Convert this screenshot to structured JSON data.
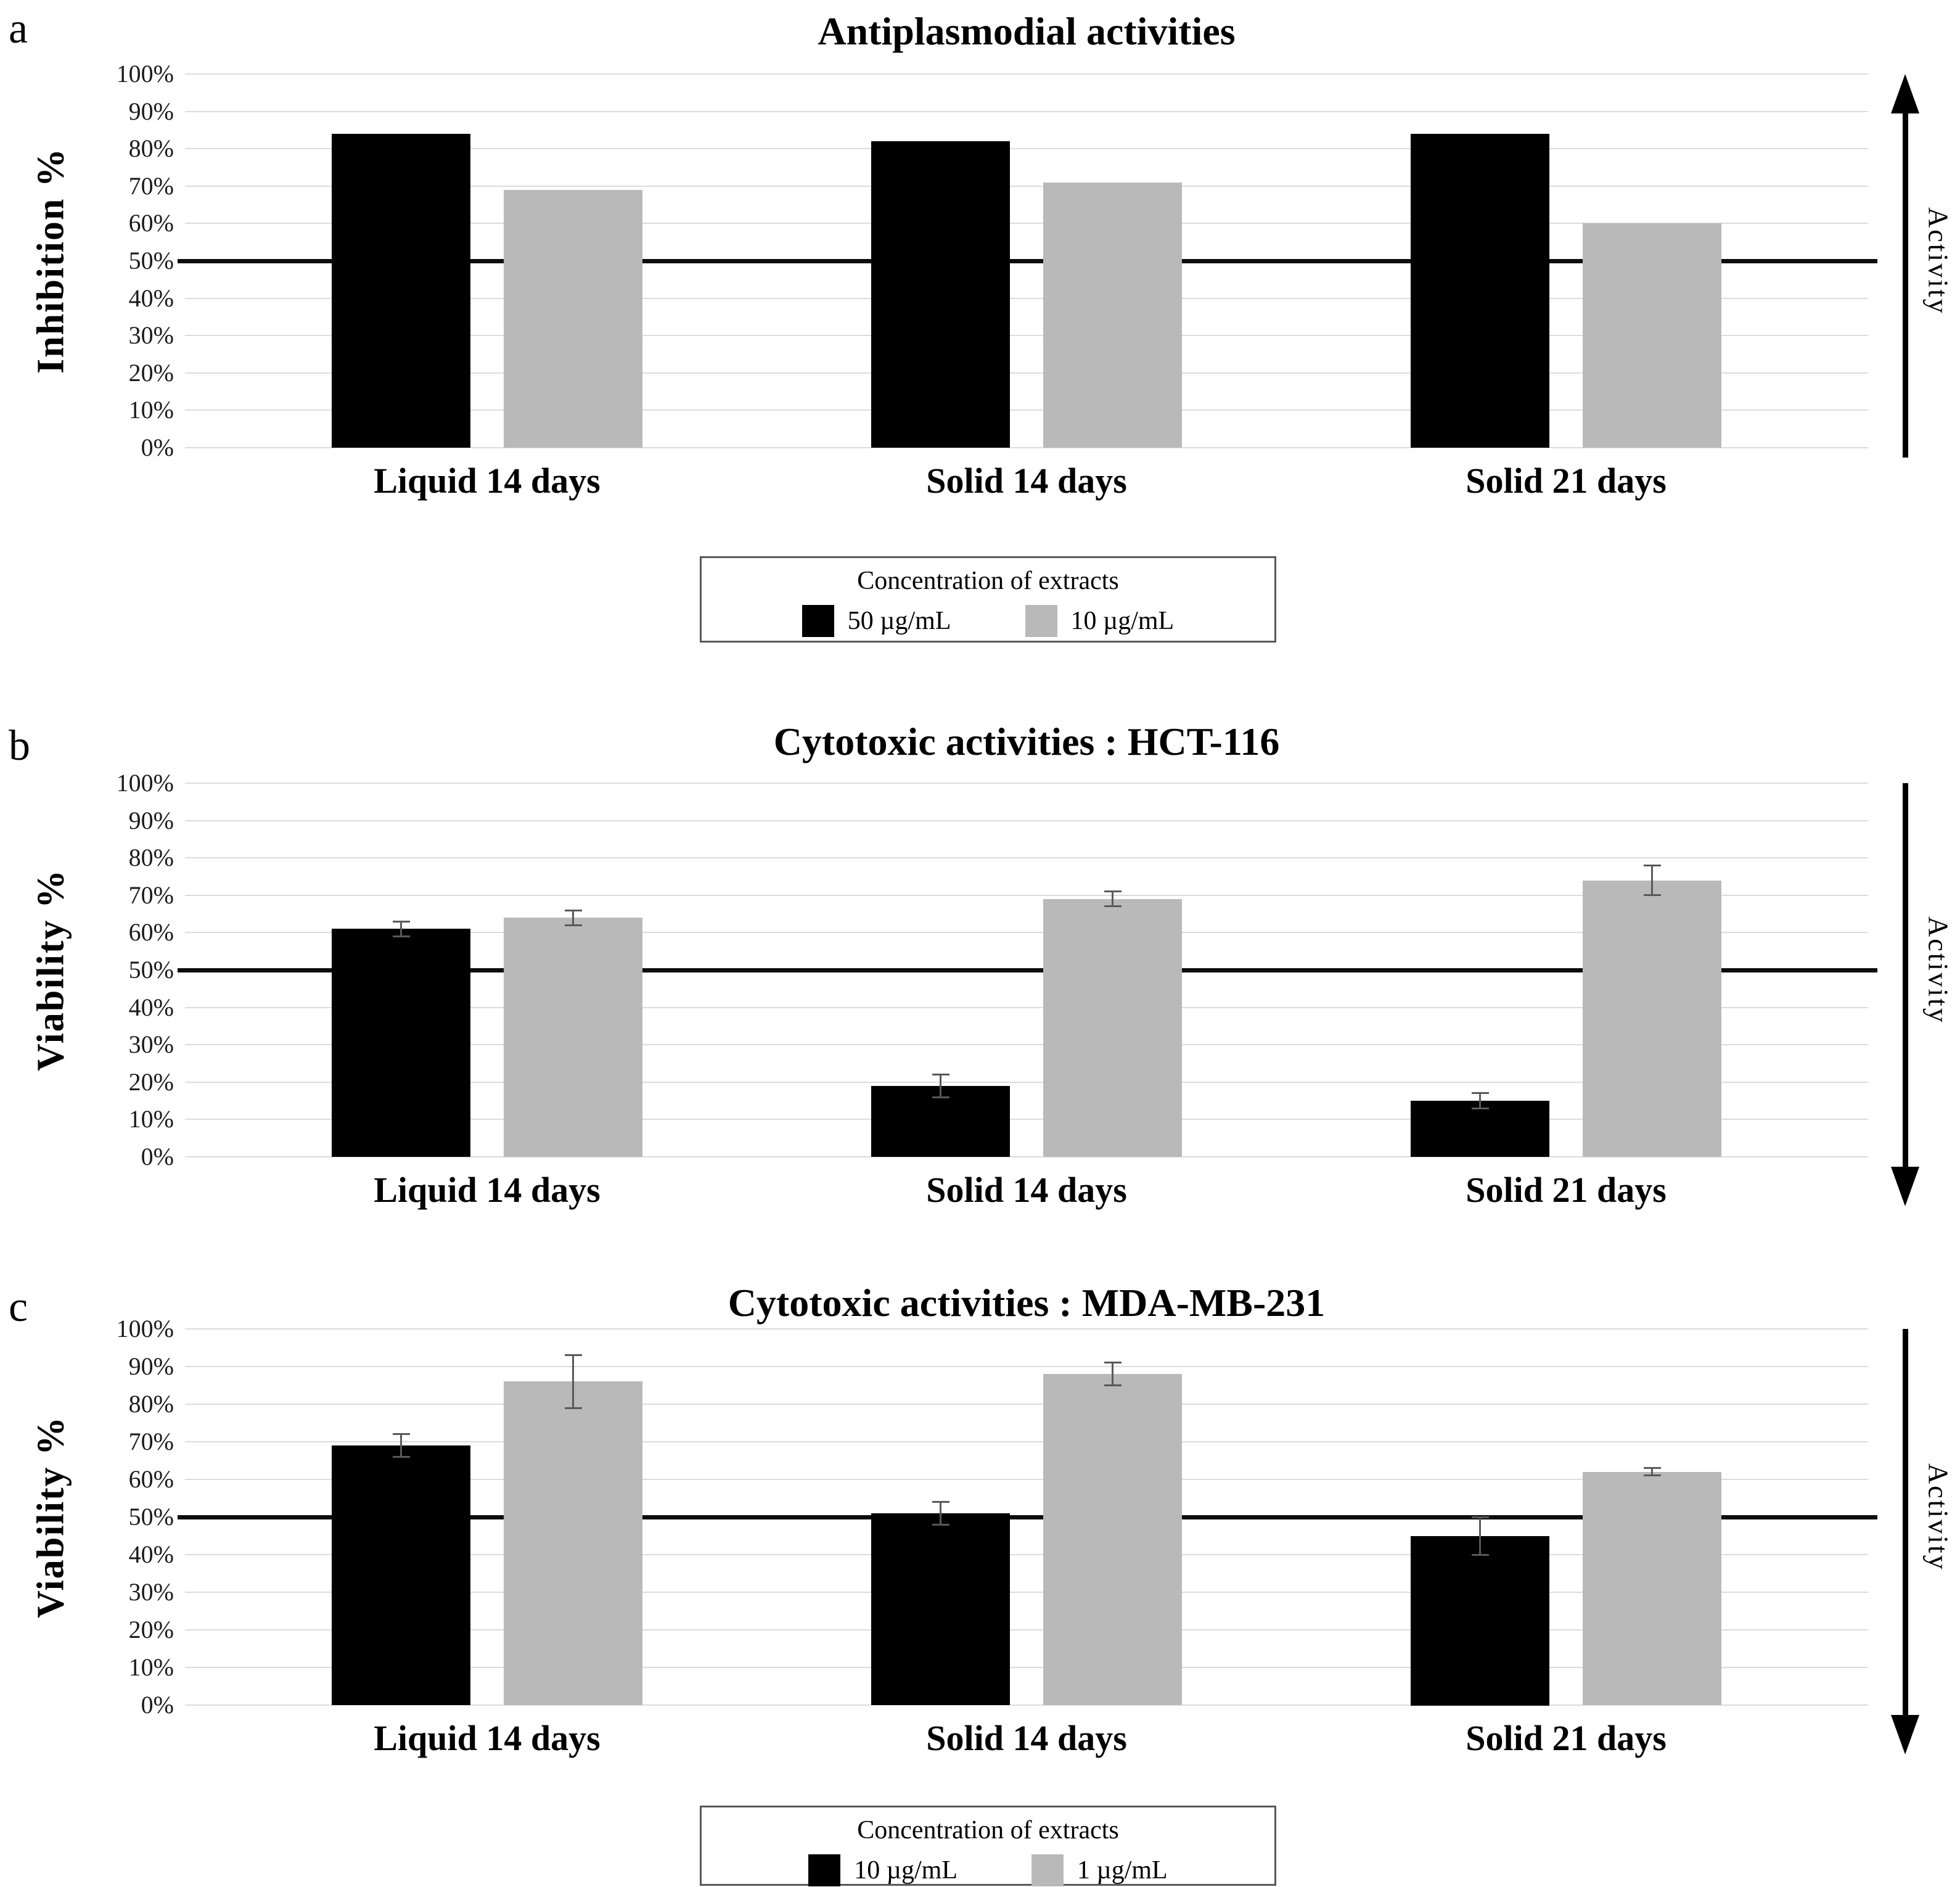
{
  "colors": {
    "series_black": "#000000",
    "series_gray": "#b9b9b9",
    "gridline": "#dcdcdc",
    "reference_line": "#0d0d0d",
    "error_bar": "#595959",
    "legend_border": "#595959",
    "background": "#ffffff"
  },
  "chart_data": [
    {
      "type": "bar",
      "panel_label": "a",
      "title": "Antiplasmodial activities",
      "ylabel": "Inhibition %",
      "ylim": [
        0,
        100
      ],
      "grid": true,
      "y_ticks": [
        "0%",
        "10%",
        "20%",
        "30%",
        "40%",
        "50%",
        "60%",
        "70%",
        "80%",
        "90%",
        "100%"
      ],
      "categories": [
        "Liquid 14 days",
        "Solid 14 days",
        "Solid 21 days"
      ],
      "series": [
        {
          "name": "50 µg/mL",
          "color": "#000000",
          "values": [
            84,
            82,
            84
          ]
        },
        {
          "name": "10 µg/mL",
          "color": "#b9b9b9",
          "values": [
            69,
            71,
            60
          ]
        }
      ],
      "reference_line_y": 50,
      "activity_label": "Activity",
      "activity_arrow": "up",
      "legend": {
        "position": "bottom",
        "title": "Concentration of extracts",
        "entries": [
          {
            "label": "50 µg/mL",
            "color": "#000000"
          },
          {
            "label": "10 µg/mL",
            "color": "#b9b9b9"
          }
        ]
      }
    },
    {
      "type": "bar",
      "panel_label": "b",
      "title": "Cytotoxic activities : HCT-116",
      "ylabel": "Viability %",
      "ylim": [
        0,
        100
      ],
      "grid": true,
      "y_ticks": [
        "0%",
        "10%",
        "20%",
        "30%",
        "40%",
        "50%",
        "60%",
        "70%",
        "80%",
        "90%",
        "100%"
      ],
      "categories": [
        "Liquid 14 days",
        "Solid 14 days",
        "Solid 21 days"
      ],
      "series": [
        {
          "name": "10 µg/mL",
          "color": "#000000",
          "values": [
            61,
            19,
            15
          ],
          "errors": [
            2,
            3,
            2
          ]
        },
        {
          "name": "1 µg/mL",
          "color": "#b9b9b9",
          "values": [
            64,
            69,
            74
          ],
          "errors": [
            2,
            2,
            4
          ]
        }
      ],
      "reference_line_y": 50,
      "activity_label": "Activity",
      "activity_arrow": "down",
      "legend": null
    },
    {
      "type": "bar",
      "panel_label": "c",
      "title": "Cytotoxic activities : MDA-MB-231",
      "ylabel": "Viability %",
      "ylim": [
        0,
        100
      ],
      "grid": true,
      "y_ticks": [
        "0%",
        "10%",
        "20%",
        "30%",
        "40%",
        "50%",
        "60%",
        "70%",
        "80%",
        "90%",
        "100%"
      ],
      "categories": [
        "Liquid 14 days",
        "Solid 14 days",
        "Solid 21 days"
      ],
      "series": [
        {
          "name": "10 µg/mL",
          "color": "#000000",
          "values": [
            69,
            51,
            45
          ],
          "errors": [
            3,
            3,
            5
          ]
        },
        {
          "name": "1 µg/mL",
          "color": "#b9b9b9",
          "values": [
            86,
            88,
            62
          ],
          "errors": [
            7,
            3,
            1
          ]
        }
      ],
      "reference_line_y": 50,
      "activity_label": "Activity",
      "activity_arrow": "down",
      "legend": {
        "position": "bottom",
        "title": "Concentration of extracts",
        "entries": [
          {
            "label": "10 µg/mL",
            "color": "#000000"
          },
          {
            "label": "1 µg/mL",
            "color": "#b9b9b9"
          }
        ]
      }
    }
  ]
}
